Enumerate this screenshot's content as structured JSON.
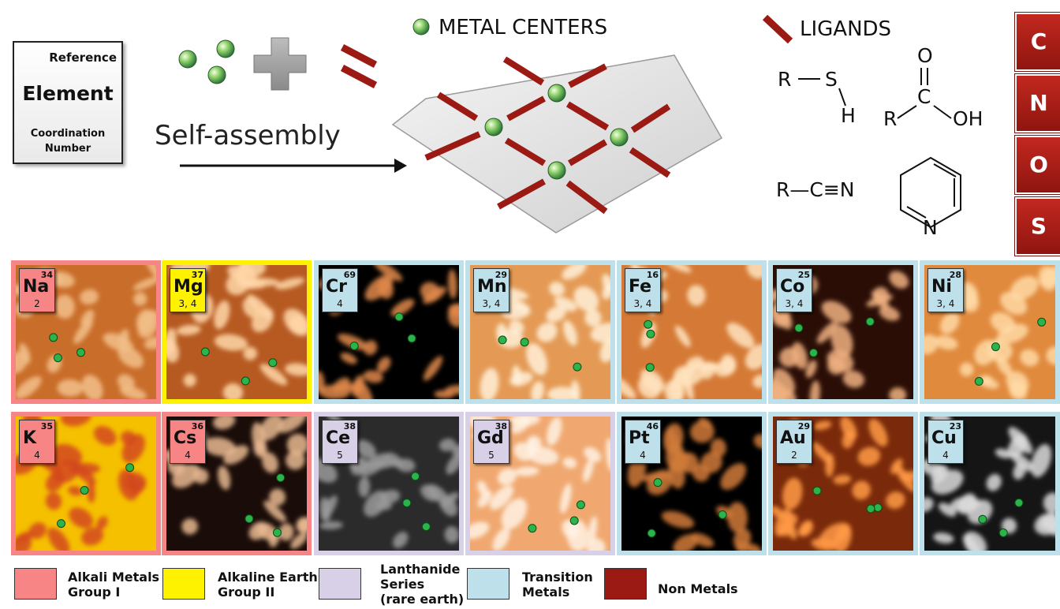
{
  "reference_card": {
    "top": "Reference",
    "middle": "Element",
    "bottom_line1": "Coordination",
    "bottom_line2": "Number"
  },
  "process_label": "Self-assembly",
  "metal_centers_label": "METAL CENTERS",
  "ligands_label": "LIGANDS",
  "ligand_formulas": {
    "thiol": {
      "r": "R",
      "s": "S",
      "h": "H"
    },
    "carboxylic": {
      "o": "O",
      "c": "C",
      "r": "R",
      "oh": "OH"
    },
    "nitrile": "R—C≡N",
    "pyridine_n": "N"
  },
  "non_metal_column": [
    "C",
    "N",
    "O",
    "S"
  ],
  "colors": {
    "alkali": "#f78585",
    "alkaline_earth": "#fff200",
    "lanthanide": "#d8d0e6",
    "transition": "#bde0ea",
    "non_metal": "#9b1b14",
    "ligand_bar": "#9b1b14"
  },
  "elements": [
    {
      "symbol": "Na",
      "number": "34",
      "cn": "2",
      "group": "alkali"
    },
    {
      "symbol": "Mg",
      "number": "37",
      "cn": "3, 4",
      "group": "alkaline_earth"
    },
    {
      "symbol": "Cr",
      "number": "69",
      "cn": "4",
      "group": "transition"
    },
    {
      "symbol": "Mn",
      "number": "29",
      "cn": "3, 4",
      "group": "transition"
    },
    {
      "symbol": "Fe",
      "number": "16",
      "cn": "3, 4",
      "group": "transition"
    },
    {
      "symbol": "Co",
      "number": "25",
      "cn": "3, 4",
      "group": "transition"
    },
    {
      "symbol": "Ni",
      "number": "28",
      "cn": "3, 4",
      "group": "transition"
    },
    {
      "symbol": "K",
      "number": "35",
      "cn": "4",
      "group": "alkali"
    },
    {
      "symbol": "Cs",
      "number": "36",
      "cn": "4",
      "group": "alkali"
    },
    {
      "symbol": "Ce",
      "number": "38",
      "cn": "5",
      "group": "lanthanide"
    },
    {
      "symbol": "Gd",
      "number": "38",
      "cn": "5",
      "group": "lanthanide"
    },
    {
      "symbol": "Pt",
      "number": "46",
      "cn": "4",
      "group": "transition"
    },
    {
      "symbol": "Au",
      "number": "29",
      "cn": "2",
      "group": "transition"
    },
    {
      "symbol": "Cu",
      "number": "23",
      "cn": "4",
      "group": "transition"
    }
  ],
  "legend": [
    {
      "label1": "Alkali Metals",
      "label2": "Group I",
      "label3": "",
      "group": "alkali"
    },
    {
      "label1": "Alkaline Earth",
      "label2": "Group II",
      "label3": "",
      "group": "alkaline_earth"
    },
    {
      "label1": "Lanthanide",
      "label2": "Series",
      "label3": "(rare earth)",
      "group": "lanthanide"
    },
    {
      "label1": "Transition",
      "label2": "Metals",
      "label3": "",
      "group": "transition"
    },
    {
      "label1": "Non Metals",
      "label2": "",
      "label3": "",
      "group": "non_metal"
    }
  ]
}
